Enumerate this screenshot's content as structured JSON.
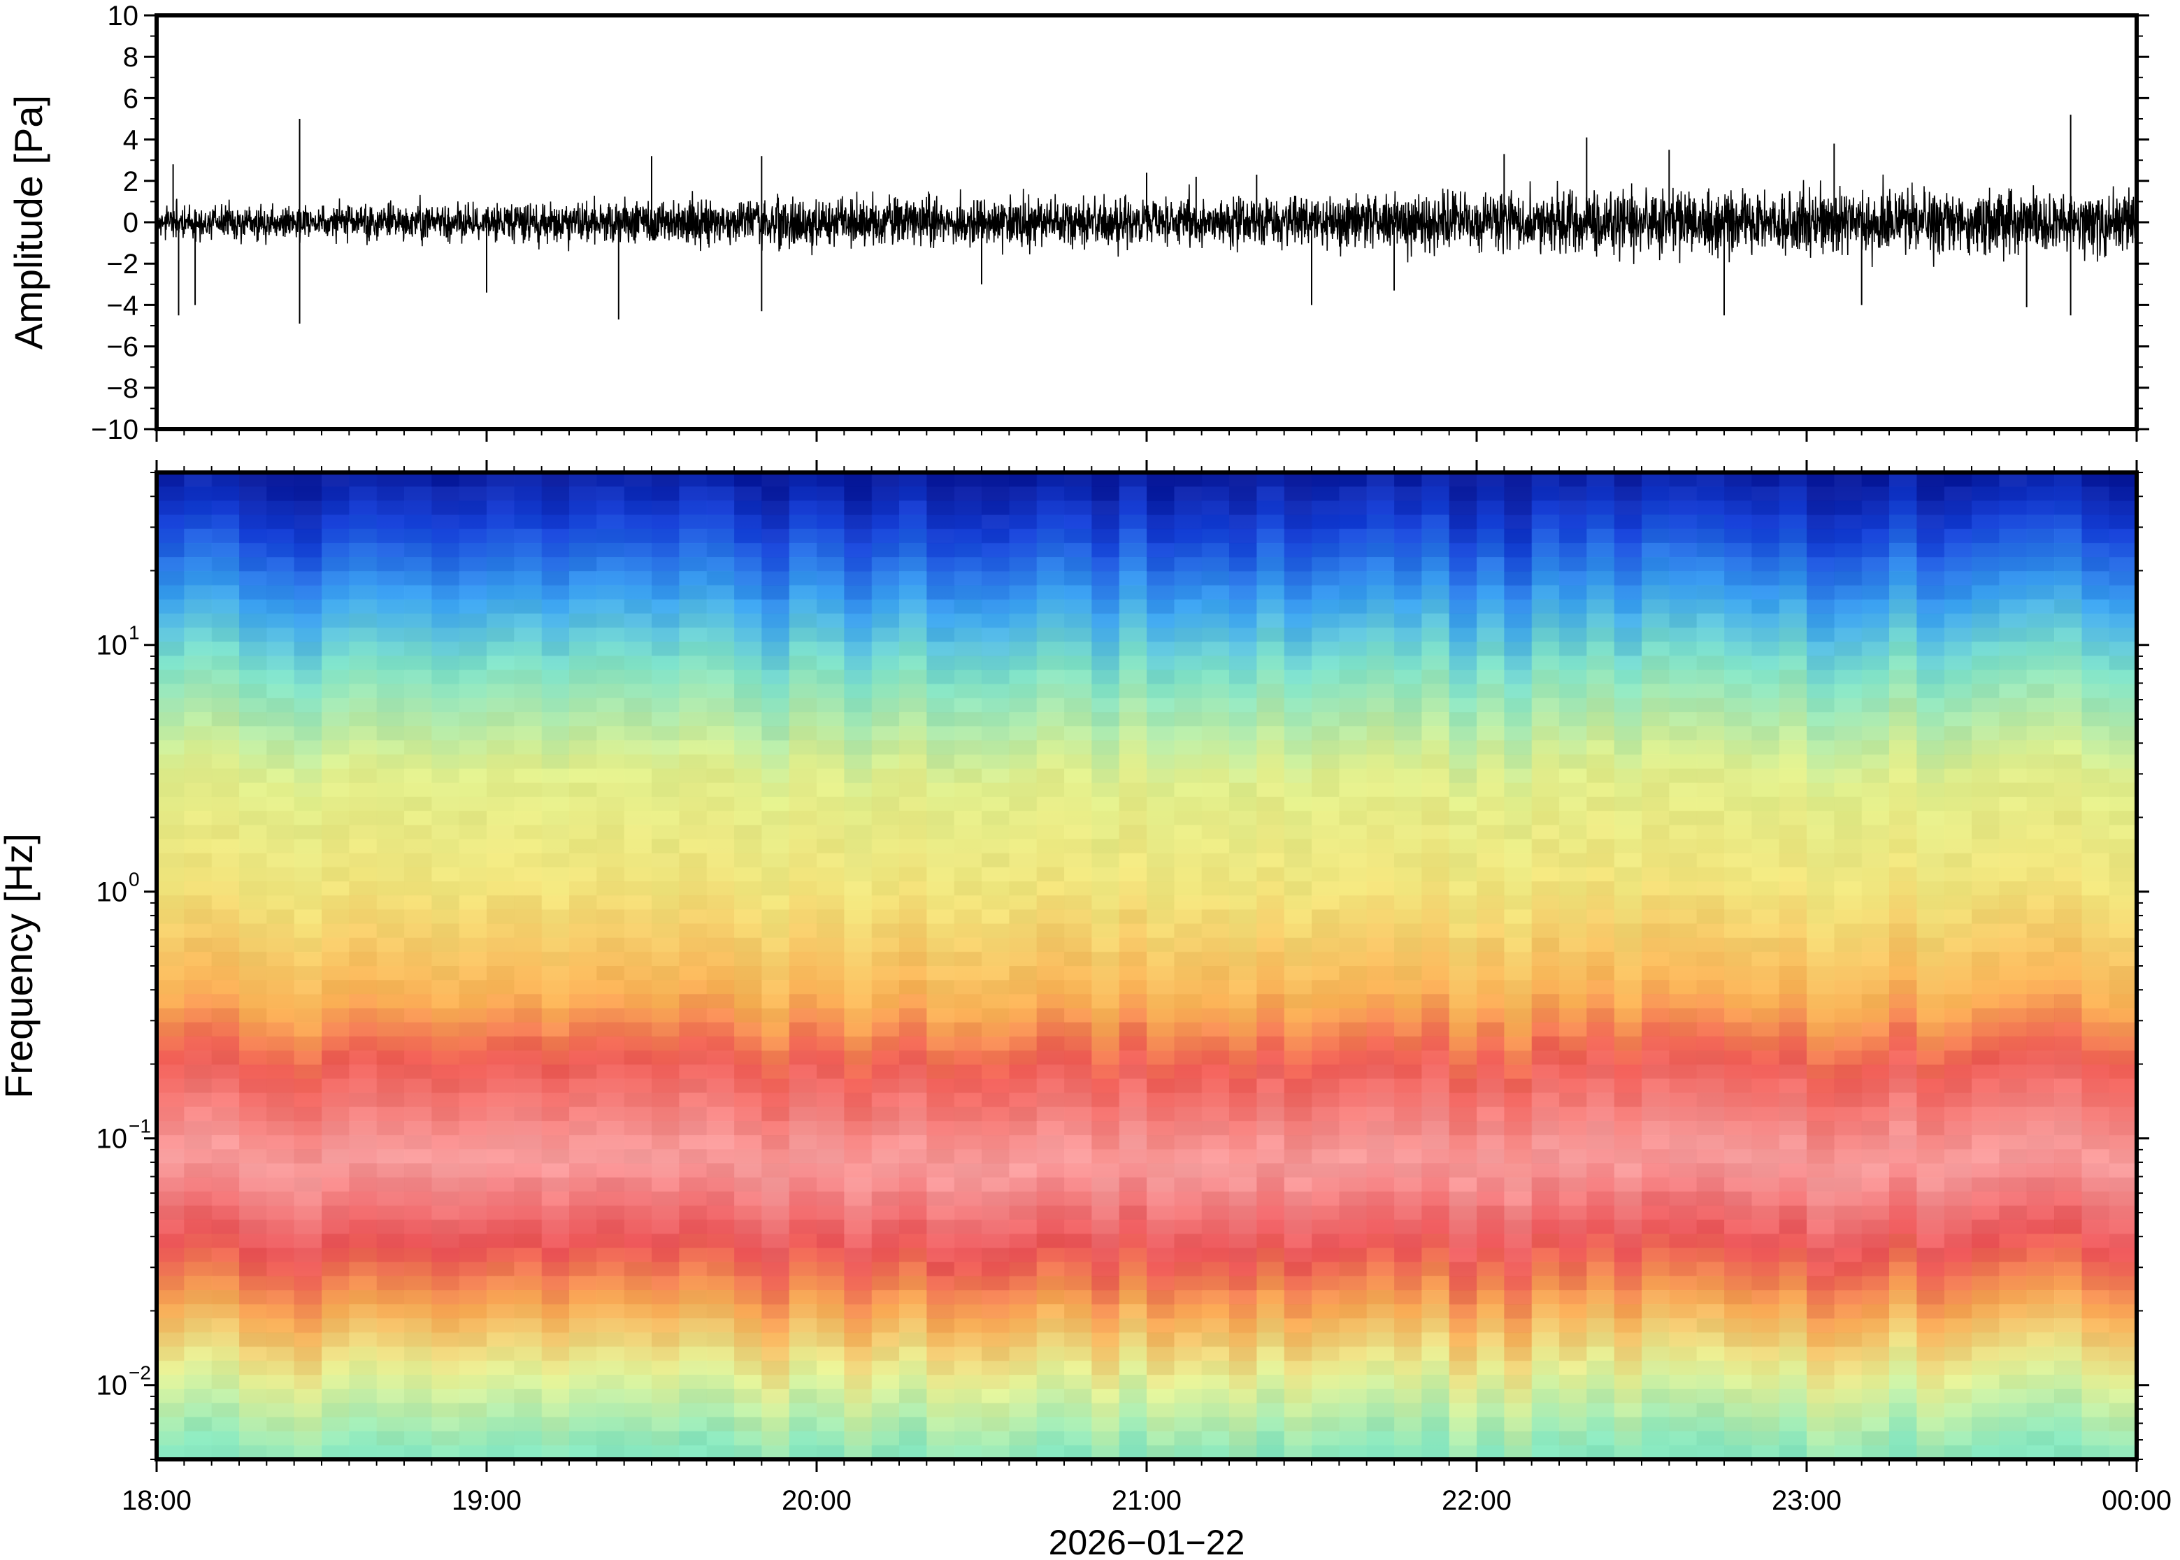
{
  "chart_data": [
    {
      "type": "line",
      "ylabel": "Amplitude [Pa]",
      "ylim": [
        -10,
        10
      ],
      "yticks": [
        10,
        8,
        6,
        4,
        2,
        0,
        -2,
        -4,
        -6,
        -8,
        -10
      ],
      "xlim": [
        "18:00",
        "00:00"
      ],
      "series": [
        {
          "color": "#000000",
          "typical_envelope": [
            {
              "x": "18:00",
              "amp": 1.0
            },
            {
              "x": "19:00",
              "amp": 1.2
            },
            {
              "x": "20:00",
              "amp": 1.5
            },
            {
              "x": "21:00",
              "amp": 1.5
            },
            {
              "x": "22:00",
              "amp": 1.8
            },
            {
              "x": "23:00",
              "amp": 2.0
            },
            {
              "x": "00:00",
              "amp": 2.0
            }
          ],
          "spikes": [
            {
              "x": "18:03",
              "y": 2.8
            },
            {
              "x": "18:04",
              "y": -4.5
            },
            {
              "x": "18:07",
              "y": -4.0
            },
            {
              "x": "18:26",
              "y": 5.0
            },
            {
              "x": "18:26",
              "y": -4.9
            },
            {
              "x": "19:00",
              "y": -3.4
            },
            {
              "x": "19:24",
              "y": -4.7
            },
            {
              "x": "19:30",
              "y": 3.2
            },
            {
              "x": "19:50",
              "y": 3.2
            },
            {
              "x": "19:50",
              "y": -4.3
            },
            {
              "x": "20:30",
              "y": -3.0
            },
            {
              "x": "21:00",
              "y": 2.4
            },
            {
              "x": "21:09",
              "y": 2.2
            },
            {
              "x": "21:20",
              "y": 2.3
            },
            {
              "x": "21:30",
              "y": -4.0
            },
            {
              "x": "21:45",
              "y": -3.3
            },
            {
              "x": "22:05",
              "y": 3.3
            },
            {
              "x": "22:20",
              "y": 4.1
            },
            {
              "x": "22:35",
              "y": 3.5
            },
            {
              "x": "22:45",
              "y": -4.5
            },
            {
              "x": "23:05",
              "y": 3.8
            },
            {
              "x": "23:10",
              "y": -4.0
            },
            {
              "x": "23:40",
              "y": -4.1
            },
            {
              "x": "23:48",
              "y": 5.2
            },
            {
              "x": "23:48",
              "y": -4.5
            }
          ]
        }
      ]
    },
    {
      "type": "heatmap",
      "ylabel": "Frequency [Hz]",
      "yscale": "log",
      "ylim": [
        0.005,
        50
      ],
      "yticks": [
        {
          "base": "10",
          "exp": "−2"
        },
        {
          "base": "10",
          "exp": "−1"
        },
        {
          "base": "10",
          "exp": "0"
        },
        {
          "base": "10",
          "exp": "1"
        }
      ],
      "xticks": [
        "18:00",
        "19:00",
        "20:00",
        "21:00",
        "22:00",
        "23:00",
        "00:00"
      ],
      "xlabel": "2026−01−22",
      "colormap": "rainbow (blue low, red/pink high)",
      "band_profile": [
        {
          "freq_hz": 50,
          "color": "#0a1a9a"
        },
        {
          "freq_hz": 30,
          "color": "#1640d8"
        },
        {
          "freq_hz": 15,
          "color": "#3aa2f0"
        },
        {
          "freq_hz": 8,
          "color": "#7fe2c8"
        },
        {
          "freq_hz": 3,
          "color": "#dfee8c"
        },
        {
          "freq_hz": 1,
          "color": "#f1e47c"
        },
        {
          "freq_hz": 0.35,
          "color": "#f9b055"
        },
        {
          "freq_hz": 0.2,
          "color": "#ee5b54"
        },
        {
          "freq_hz": 0.08,
          "color": "#f8a0a0"
        },
        {
          "freq_hz": 0.035,
          "color": "#ea5255"
        },
        {
          "freq_hz": 0.02,
          "color": "#f7a953"
        },
        {
          "freq_hz": 0.011,
          "color": "#e7f195"
        },
        {
          "freq_hz": 0.005,
          "color": "#84e6c0"
        }
      ]
    }
  ]
}
